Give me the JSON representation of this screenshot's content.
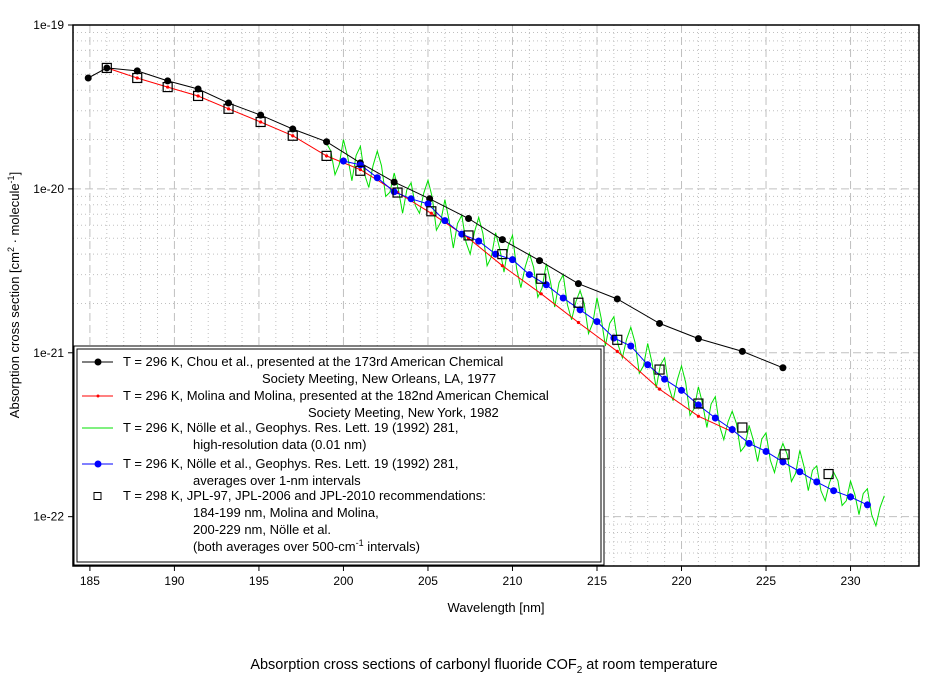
{
  "chart_data": {
    "type": "line",
    "title": "Absorption cross sections of carbonyl fluoride COF",
    "title_subscript": "2",
    "title_suffix": " at room temperature",
    "xlabel": "Wavelength [nm]",
    "ylabel_main": "Absorption cross section [cm",
    "ylabel_sup1": "2",
    "ylabel_mid": " · molecule",
    "ylabel_sup2": "-1",
    "ylabel_end": "]",
    "xlim": [
      184,
      234.05
    ],
    "ylim": [
      5e-23,
      1e-19
    ],
    "yscale": "log",
    "grid": true,
    "legend_position": "lower-left",
    "x_ticks": [
      185,
      190,
      195,
      200,
      205,
      210,
      215,
      220,
      225,
      230
    ],
    "x_tick_labels": [
      "185",
      "190",
      "195",
      "200",
      "205",
      "210",
      "215",
      "220",
      "225",
      "230"
    ],
    "y_ticks": [
      1e-19,
      1e-20,
      1e-21,
      1e-22
    ],
    "y_tick_labels": [
      "1e-19",
      "1e-20",
      "1e-21",
      "1e-22"
    ],
    "series": [
      {
        "name": "Chou et al. 1977",
        "color": "#000000",
        "marker": "circle",
        "legend_lines": [
          "T = 296 K, Chou et al., presented at the 173rd American Chemical",
          "Society Meeting, New Orleans, LA, 1977"
        ],
        "x": [
          184.9,
          186.0,
          187.8,
          189.6,
          191.4,
          193.2,
          195.1,
          197.0,
          199.0,
          201.0,
          203.0,
          205.1,
          207.4,
          209.4,
          211.6,
          213.9,
          216.2,
          218.7,
          221.0,
          223.6,
          226.0
        ],
        "y": [
          4.75e-20,
          5.47e-20,
          5.25e-20,
          4.56e-20,
          4.07e-20,
          3.34e-20,
          2.82e-20,
          2.32e-20,
          1.94e-20,
          1.44e-20,
          1.1e-20,
          8.7e-21,
          6.6e-21,
          4.9e-21,
          3.65e-21,
          2.64e-21,
          2.13e-21,
          1.51e-21,
          1.22e-21,
          1.02e-21,
          8.1e-22
        ]
      },
      {
        "name": "Molina and Molina 1982",
        "color": "#ff0000",
        "marker": "small-dot",
        "legend_lines": [
          "T = 296 K, Molina and Molina, presented at the 182nd American Chemical",
          "Society Meeting, New York, 1982"
        ],
        "x": [
          186.0,
          187.8,
          189.6,
          191.4,
          193.2,
          195.1,
          197.0,
          199.0,
          201.0,
          203.2,
          205.2,
          207.4,
          209.4,
          211.7,
          213.9,
          216.2,
          218.7,
          221.0,
          223.0
        ],
        "y": [
          5.47e-20,
          4.75e-20,
          4.18e-20,
          3.69e-20,
          3.08e-20,
          2.56e-20,
          2.11e-20,
          1.59e-20,
          1.31e-20,
          9.5e-21,
          7.1e-21,
          5e-21,
          3.4e-21,
          2.29e-21,
          1.53e-21,
          1.02e-21,
          6e-22,
          4.1e-22,
          3.3e-22
        ]
      },
      {
        "name": "Nölle et al. 1992 high-resolution",
        "color": "#00e000",
        "marker": "none",
        "legend_lines": [
          "T = 296 K, Nölle et al., Geophys. Res. Lett. 19 (1992) 281,",
          "high-resolution data (0.01 nm)"
        ],
        "x_start": 199.0,
        "x_step": 0.5,
        "y": [
          1.9e-20,
          1.22e-20,
          2e-20,
          1.12e-20,
          1.82e-20,
          1.02e-20,
          1.7e-20,
          9e-21,
          1.25e-20,
          7.1e-21,
          1.09e-20,
          7.1e-21,
          1.13e-20,
          5.6e-21,
          8.6e-21,
          4.35e-21,
          6.9e-21,
          4e-21,
          6.7e-21,
          3.4e-21,
          5.4e-21,
          3.1e-21,
          5.2e-21,
          2.5e-21,
          4.05e-21,
          2.18e-21,
          3.5e-21,
          1.9e-21,
          3e-21,
          1.59e-21,
          2.4e-21,
          1.31e-21,
          2.17e-21,
          1.1e-21,
          1.66e-21,
          9.3e-22,
          1.43e-21,
          7.5e-22,
          1.14e-21,
          6.1e-22,
          9.3e-22,
          5.1e-22,
          8.3e-22,
          4.15e-22,
          6.2e-22,
          3.5e-22,
          5.4e-22,
          2.95e-22,
          4.4e-22,
          2.5e-22,
          3.6e-22,
          2.17e-22,
          3.25e-22,
          1.86e-22,
          2.8e-22,
          1.64e-22,
          2.54e-22,
          1.44e-22,
          2.04e-22,
          1.25e-22,
          1.87e-22,
          1.17e-22,
          1.65e-22,
          1.03e-22,
          1.48e-22,
          8.8e-23,
          1.34e-22
        ]
      },
      {
        "name": "Nölle et al. 1992 1-nm averages",
        "color": "#0000ff",
        "marker": "circle",
        "legend_lines": [
          "T = 296 K, Nölle et al., Geophys. Res. Lett. 19 (1992) 281,",
          "averages over 1-nm intervals"
        ],
        "x": [
          200,
          201,
          202,
          203,
          204,
          205,
          206,
          207,
          208,
          209,
          210,
          211,
          212,
          213,
          214,
          215,
          216,
          217,
          218,
          219,
          220,
          221,
          222,
          223,
          224,
          225,
          226,
          227,
          228,
          229,
          230,
          231
        ],
        "y": [
          1.48e-20,
          1.4e-20,
          1.17e-20,
          9.6e-21,
          8.7e-21,
          8.1e-21,
          6.4e-21,
          5.3e-21,
          4.8e-21,
          4e-21,
          3.7e-21,
          3e-21,
          2.6e-21,
          2.16e-21,
          1.83e-21,
          1.55e-21,
          1.23e-21,
          1.1e-21,
          8.45e-22,
          6.9e-22,
          5.9e-22,
          4.8e-22,
          4e-22,
          3.4e-22,
          2.8e-22,
          2.5e-22,
          2.16e-22,
          1.88e-22,
          1.63e-22,
          1.44e-22,
          1.32e-22,
          1.18e-22
        ]
      },
      {
        "name": "JPL recommendations",
        "color": "#000000",
        "marker": "open-square",
        "legend_lines": [
          "T = 298 K, JPL-97, JPL-2006 and JPL-2010 recommendations:",
          "184-199 nm, Molina and Molina,",
          "200-229 nm, Nölle et al.",
          "(both averages over 500-cm",
          "-1",
          " intervals)"
        ],
        "x": [
          186.0,
          187.8,
          189.6,
          191.4,
          193.2,
          195.1,
          197.0,
          199.0,
          201.0,
          203.2,
          205.2,
          207.4,
          209.4,
          211.7,
          213.9,
          216.2,
          218.7,
          221.0,
          223.6,
          226.1,
          228.7
        ],
        "y": [
          5.47e-20,
          4.75e-20,
          4.18e-20,
          3.69e-20,
          3.08e-20,
          2.56e-20,
          2.11e-20,
          1.59e-20,
          1.29e-20,
          9.5e-21,
          7.3e-21,
          5.2e-21,
          4e-21,
          2.83e-21,
          2.02e-21,
          1.2e-21,
          7.9e-22,
          4.9e-22,
          3.5e-22,
          2.4e-22,
          1.82e-22
        ]
      }
    ]
  }
}
